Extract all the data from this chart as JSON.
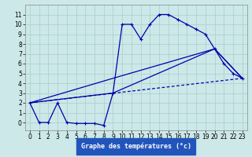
{
  "xlabel": "Graphe des températures (°c)",
  "background_color": "#cce8e8",
  "grid_color": "#aacccc",
  "line_color": "#0000aa",
  "xlim": [
    -0.5,
    23.5
  ],
  "ylim": [
    -0.8,
    12
  ],
  "yticks": [
    0,
    1,
    2,
    3,
    4,
    5,
    6,
    7,
    8,
    9,
    10,
    11
  ],
  "xticks": [
    0,
    1,
    2,
    3,
    4,
    5,
    6,
    7,
    8,
    9,
    10,
    11,
    12,
    13,
    14,
    15,
    16,
    17,
    18,
    19,
    20,
    21,
    22,
    23
  ],
  "line1_x": [
    0,
    1,
    2,
    3,
    4,
    5,
    6,
    7,
    8,
    9,
    10,
    11,
    12,
    13,
    14,
    15,
    16,
    17,
    18,
    19,
    20,
    21,
    22,
    23
  ],
  "line1_y": [
    2,
    0,
    0,
    2,
    0,
    -0.1,
    -0.1,
    -0.1,
    -0.3,
    3,
    10,
    10,
    8.5,
    10,
    11,
    11,
    10.5,
    10,
    9.5,
    9,
    7.5,
    6,
    5,
    4.5
  ],
  "line2_x": [
    0,
    23
  ],
  "line2_y": [
    2,
    4.5
  ],
  "line3_x": [
    0,
    9,
    20,
    23
  ],
  "line3_y": [
    2,
    3,
    7.5,
    4.5
  ],
  "line4_x": [
    0,
    9,
    20,
    23
  ],
  "line4_y": [
    2,
    4.5,
    7.5,
    4.5
  ],
  "xlabel_bg": "#2255bb",
  "xlabel_color": "white",
  "xlabel_fontsize": 6.0,
  "tick_fontsize": 5.5,
  "line_width": 0.9,
  "marker_size": 3.5
}
